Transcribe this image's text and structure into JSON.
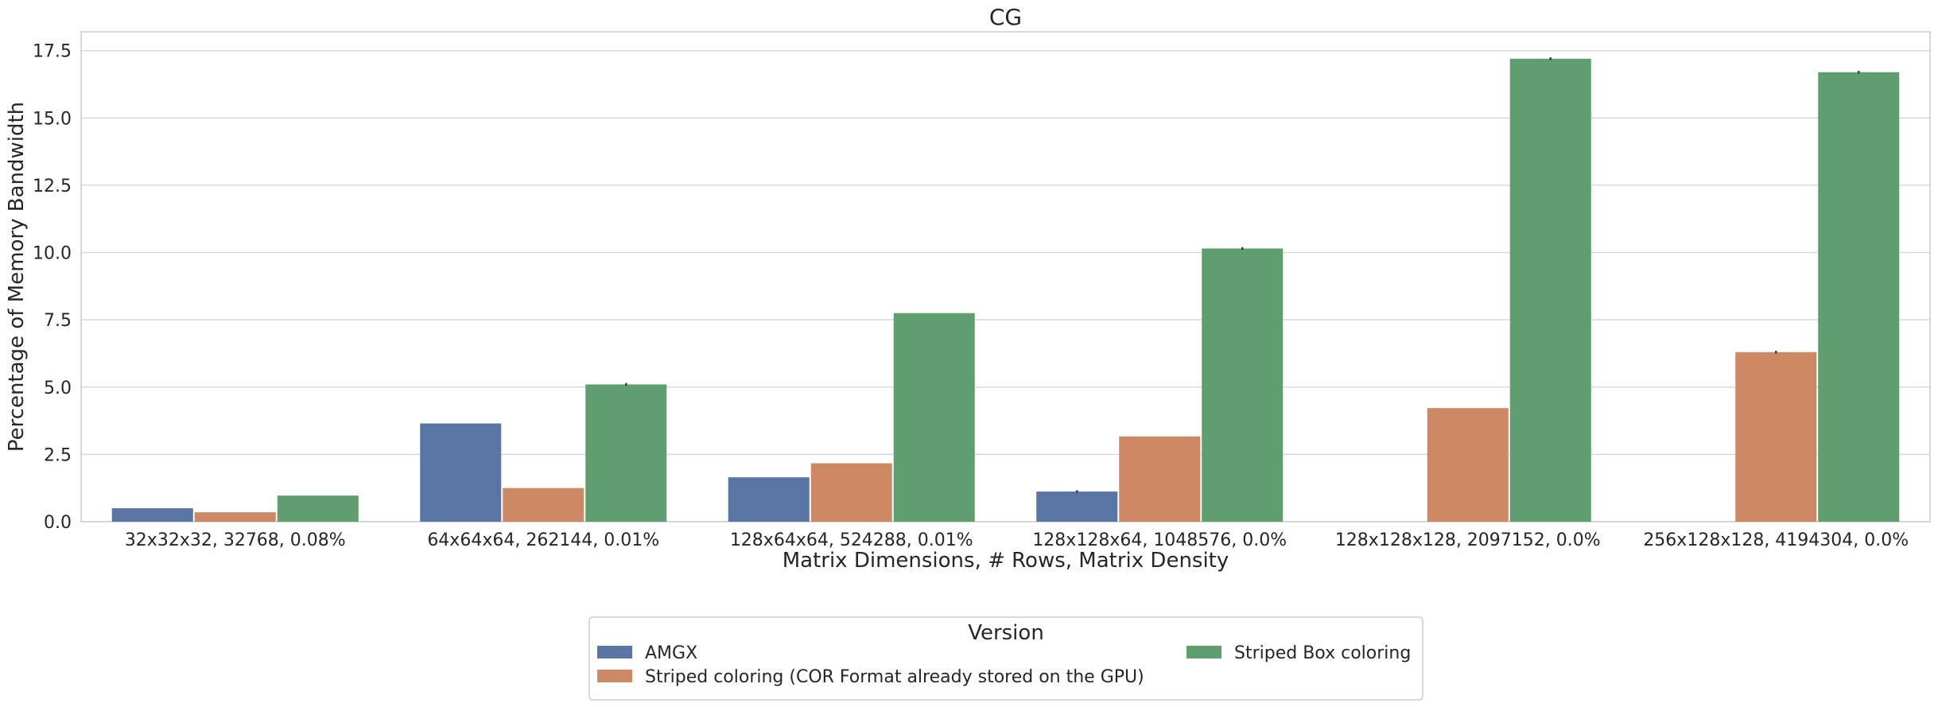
{
  "chart_data": {
    "type": "bar",
    "title": "CG",
    "xlabel": "Matrix Dimensions, # Rows, Matrix Density",
    "ylabel": "Percentage of Memory Bandwidth",
    "ylim": [
      0,
      18.2
    ],
    "yticks": [
      "0.0",
      "2.5",
      "5.0",
      "7.5",
      "10.0",
      "12.5",
      "15.0",
      "17.5"
    ],
    "grid": true,
    "legend_position": "bottom-center",
    "legend_title": "Version",
    "categories": [
      "32x32x32, 32768, 0.08%",
      "64x64x64, 262144, 0.01%",
      "128x64x64, 524288, 0.01%",
      "128x128x64, 1048576, 0.0%",
      "128x128x128, 2097152, 0.0%",
      "256x128x128, 4194304, 0.0%"
    ],
    "series": [
      {
        "name": "AMGX",
        "color": "#5975a4",
        "values": [
          0.5,
          3.65,
          1.65,
          1.12,
          null,
          null
        ],
        "error": [
          0,
          0,
          0,
          0.05,
          0,
          0
        ]
      },
      {
        "name": "Striped coloring (COR Format already stored on the GPU)",
        "color": "#cc8963",
        "values": [
          0.35,
          1.25,
          2.17,
          3.17,
          4.22,
          6.3
        ],
        "error": [
          0,
          0,
          0,
          0,
          0,
          0.05
        ]
      },
      {
        "name": "Striped Box coloring",
        "color": "#5f9e6e",
        "values": [
          0.97,
          5.1,
          7.75,
          10.15,
          17.2,
          16.7
        ],
        "error": [
          0,
          0.05,
          0,
          0.05,
          0.05,
          0.05
        ]
      }
    ]
  }
}
